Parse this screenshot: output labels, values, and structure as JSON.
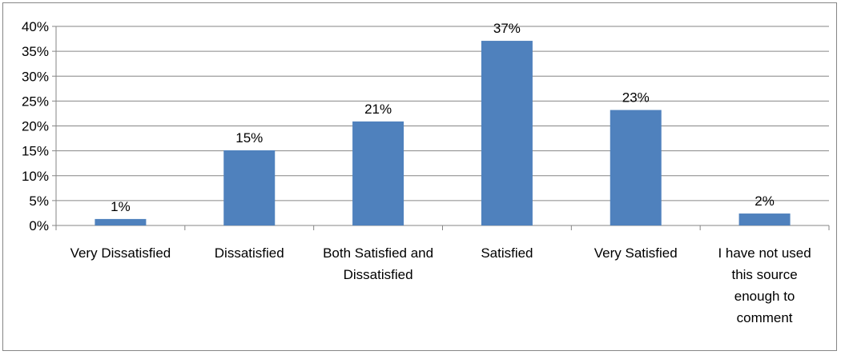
{
  "chart_data": {
    "type": "bar",
    "categories": [
      [
        "Very Dissatisfied"
      ],
      [
        "Dissatisfied"
      ],
      [
        "Both Satisfied and",
        "Dissatisfied"
      ],
      [
        "Satisfied"
      ],
      [
        "Very Satisfied"
      ],
      [
        "I have not used",
        "this source",
        "enough to",
        "comment"
      ]
    ],
    "values": [
      1.3,
      15.1,
      20.9,
      37.1,
      23.2,
      2.4
    ],
    "data_labels": [
      "1%",
      "15%",
      "21%",
      "37%",
      "23%",
      "2%"
    ],
    "y_ticks": [
      {
        "value": 0,
        "label": "0%"
      },
      {
        "value": 5,
        "label": "5%"
      },
      {
        "value": 10,
        "label": "10%"
      },
      {
        "value": 15,
        "label": "15%"
      },
      {
        "value": 20,
        "label": "20%"
      },
      {
        "value": 25,
        "label": "25%"
      },
      {
        "value": 30,
        "label": "30%"
      },
      {
        "value": 35,
        "label": "35%"
      },
      {
        "value": 40,
        "label": "40%"
      }
    ],
    "ylim": [
      0,
      40
    ],
    "grid": true,
    "legend": "none",
    "title": "",
    "xlabel": "",
    "ylabel": "",
    "colors": {
      "bar": "#4f81bd",
      "grid": "#868686",
      "axis": "#868686",
      "frame": "#868686"
    }
  }
}
